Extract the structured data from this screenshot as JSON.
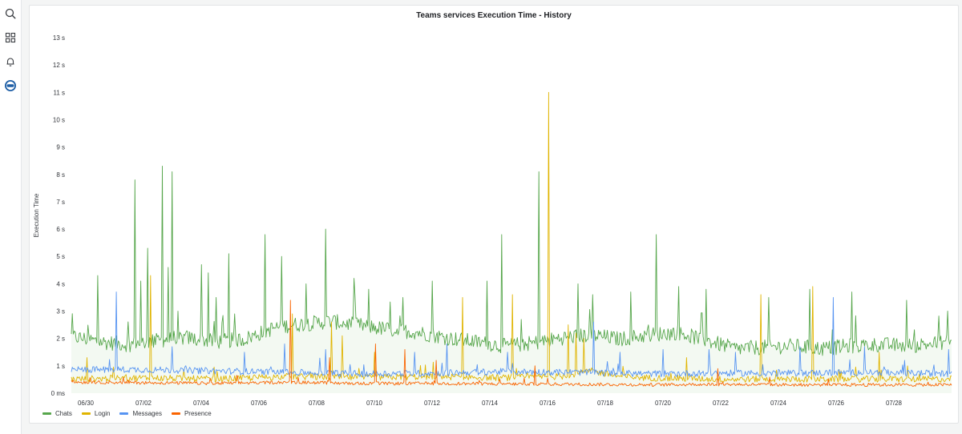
{
  "sidebar": {
    "icons": [
      {
        "name": "search-icon"
      },
      {
        "name": "dashboards-icon"
      },
      {
        "name": "alerting-icon"
      },
      {
        "name": "connections-icon"
      }
    ]
  },
  "panel": {
    "title": "Teams services Execution Time - History"
  },
  "chart_data": {
    "type": "line",
    "title": "Teams services Execution Time - History",
    "ylabel": "Execution Time",
    "xlabel": "",
    "y_unit_seconds": true,
    "ylim": [
      0,
      13
    ],
    "yticks": [
      {
        "v": 0,
        "label": "0 ms"
      },
      {
        "v": 1,
        "label": "1 s"
      },
      {
        "v": 2,
        "label": "2 s"
      },
      {
        "v": 3,
        "label": "3 s"
      },
      {
        "v": 4,
        "label": "4 s"
      },
      {
        "v": 5,
        "label": "5 s"
      },
      {
        "v": 6,
        "label": "6 s"
      },
      {
        "v": 7,
        "label": "7 s"
      },
      {
        "v": 8,
        "label": "8 s"
      },
      {
        "v": 9,
        "label": "9 s"
      },
      {
        "v": 10,
        "label": "10 s"
      },
      {
        "v": 11,
        "label": "11 s"
      },
      {
        "v": 12,
        "label": "12 s"
      },
      {
        "v": 13,
        "label": "13 s"
      }
    ],
    "xlim": [
      "06/29 12:00",
      "07/29 18:00"
    ],
    "xticks": [
      "06/30",
      "07/02",
      "07/04",
      "07/06",
      "07/08",
      "07/10",
      "07/12",
      "07/14",
      "07/16",
      "07/18",
      "07/20",
      "07/22",
      "07/24",
      "07/26",
      "07/28"
    ],
    "grid": false,
    "legend_position": "bottom-left",
    "series": [
      {
        "name": "Chats",
        "color": "#56a64b",
        "baseline": [
          [
            0,
            2.05
          ],
          [
            2,
            1.85
          ],
          [
            4,
            1.75
          ],
          [
            6,
            1.9
          ],
          [
            8,
            2.0
          ],
          [
            10,
            1.85
          ],
          [
            12,
            1.95
          ],
          [
            14,
            2.35
          ],
          [
            15,
            2.45
          ],
          [
            16,
            2.5
          ],
          [
            18,
            2.6
          ],
          [
            20,
            2.45
          ],
          [
            22,
            2.3
          ],
          [
            24,
            2.2
          ],
          [
            26,
            2.0
          ],
          [
            28,
            1.85
          ],
          [
            30,
            1.7
          ],
          [
            32,
            1.8
          ],
          [
            34,
            2.0
          ],
          [
            36,
            2.1
          ],
          [
            38,
            1.95
          ],
          [
            40,
            2.1
          ],
          [
            42,
            2.2
          ],
          [
            44,
            1.9
          ],
          [
            46,
            1.6
          ],
          [
            48,
            1.65
          ],
          [
            50,
            1.7
          ],
          [
            52,
            1.6
          ],
          [
            54,
            1.7
          ],
          [
            56,
            1.75
          ],
          [
            58,
            1.7
          ],
          [
            60,
            1.8
          ],
          [
            61,
            1.9
          ]
        ],
        "spikes": [
          [
            1.8,
            4.3
          ],
          [
            4.4,
            7.8
          ],
          [
            4.8,
            4.1
          ],
          [
            5.3,
            5.3
          ],
          [
            6.3,
            8.3
          ],
          [
            6.7,
            4.6
          ],
          [
            7.0,
            8.1
          ],
          [
            9.0,
            4.7
          ],
          [
            9.5,
            4.4
          ],
          [
            10.0,
            3.5
          ],
          [
            10.9,
            5.1
          ],
          [
            13.4,
            5.8
          ],
          [
            14.6,
            5.0
          ],
          [
            16.3,
            4.0
          ],
          [
            17.6,
            6.0
          ],
          [
            19.6,
            4.2
          ],
          [
            20.6,
            3.8
          ],
          [
            23.0,
            3.5
          ],
          [
            25.0,
            4.1
          ],
          [
            28.8,
            4.1
          ],
          [
            29.8,
            5.8
          ],
          [
            32.4,
            8.1
          ],
          [
            35.1,
            4.0
          ],
          [
            36.1,
            3.6
          ],
          [
            38.8,
            3.7
          ],
          [
            40.5,
            5.8
          ],
          [
            42.1,
            3.9
          ],
          [
            44.0,
            3.8
          ],
          [
            48.3,
            3.5
          ],
          [
            51.2,
            3.8
          ],
          [
            54.1,
            3.7
          ],
          [
            57.9,
            3.4
          ],
          [
            60.7,
            3.0
          ]
        ]
      },
      {
        "name": "Login",
        "color": "#e0b400",
        "baseline": [
          [
            0,
            0.5
          ],
          [
            5,
            0.55
          ],
          [
            10,
            0.5
          ],
          [
            15,
            0.6
          ],
          [
            20,
            0.55
          ],
          [
            25,
            0.6
          ],
          [
            30,
            0.55
          ],
          [
            34,
            0.6
          ],
          [
            36,
            0.8
          ],
          [
            38,
            0.6
          ],
          [
            40,
            0.55
          ],
          [
            45,
            0.5
          ],
          [
            50,
            0.5
          ],
          [
            55,
            0.5
          ],
          [
            61,
            0.5
          ]
        ],
        "spikes": [
          [
            1.1,
            1.3
          ],
          [
            5.5,
            4.3
          ],
          [
            15.3,
            2.9
          ],
          [
            18.0,
            2.6
          ],
          [
            18.8,
            2.1
          ],
          [
            21.0,
            1.5
          ],
          [
            27.1,
            3.5
          ],
          [
            30.6,
            3.6
          ],
          [
            33.1,
            11.0
          ],
          [
            34.4,
            2.5
          ],
          [
            35.0,
            2.2
          ],
          [
            35.5,
            2.0
          ],
          [
            42.6,
            1.3
          ],
          [
            47.8,
            3.6
          ],
          [
            51.4,
            3.9
          ],
          [
            56.0,
            1.5
          ]
        ]
      },
      {
        "name": "Messages",
        "color": "#5794f2",
        "baseline": [
          [
            0,
            0.85
          ],
          [
            5,
            0.85
          ],
          [
            10,
            0.8
          ],
          [
            15,
            0.75
          ],
          [
            20,
            0.7
          ],
          [
            25,
            0.72
          ],
          [
            30,
            0.78
          ],
          [
            35,
            0.75
          ],
          [
            40,
            0.7
          ],
          [
            45,
            0.72
          ],
          [
            50,
            0.72
          ],
          [
            55,
            0.75
          ],
          [
            61,
            0.7
          ]
        ],
        "spikes": [
          [
            3.1,
            3.7
          ],
          [
            7.0,
            1.7
          ],
          [
            12.0,
            1.5
          ],
          [
            14.8,
            1.8
          ],
          [
            17.6,
            1.6
          ],
          [
            23.8,
            1.5
          ],
          [
            26.0,
            1.8
          ],
          [
            30.2,
            1.5
          ],
          [
            36.2,
            2.6
          ],
          [
            38.0,
            1.5
          ],
          [
            41.0,
            1.6
          ],
          [
            44.2,
            1.6
          ],
          [
            46.0,
            1.5
          ],
          [
            50.5,
            1.7
          ],
          [
            52.8,
            3.5
          ],
          [
            55.0,
            1.7
          ],
          [
            60.8,
            1.6
          ]
        ]
      },
      {
        "name": "Presence",
        "color": "#fa6400",
        "baseline": [
          [
            0,
            0.4
          ],
          [
            5,
            0.38
          ],
          [
            10,
            0.35
          ],
          [
            15,
            0.4
          ],
          [
            20,
            0.35
          ],
          [
            25,
            0.35
          ],
          [
            30,
            0.33
          ],
          [
            35,
            0.32
          ],
          [
            40,
            0.3
          ],
          [
            45,
            0.32
          ],
          [
            50,
            0.3
          ],
          [
            55,
            0.3
          ],
          [
            61,
            0.3
          ]
        ],
        "spikes": [
          [
            15.2,
            3.4
          ],
          [
            17.9,
            1.3
          ],
          [
            21.1,
            1.8
          ],
          [
            23.1,
            1.6
          ],
          [
            25.3,
            1.2
          ],
          [
            32.1,
            1.0
          ],
          [
            44.8,
            0.9
          ]
        ]
      }
    ],
    "x_units": "half-days since 06/29 12:00"
  }
}
